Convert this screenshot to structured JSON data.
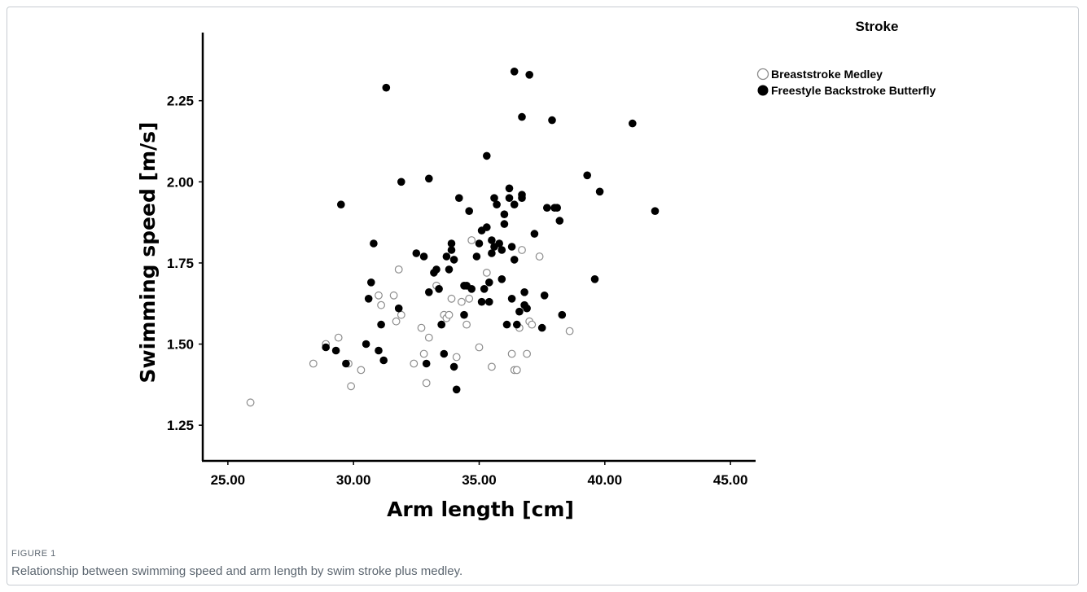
{
  "figure": {
    "label": "FIGURE 1",
    "caption": "Relationship between swimming speed and arm length by swim stroke plus medley."
  },
  "colors": {
    "open_marker_stroke": "#8c8c8c",
    "filled_marker": "#000000",
    "axis": "#000000",
    "caption_text": "#5c6670"
  },
  "chart_data": {
    "type": "scatter",
    "xlabel": "Arm length [cm]",
    "ylabel": "Swimming speed [m/s]",
    "xlim": [
      24,
      46
    ],
    "ylim": [
      1.14,
      2.46
    ],
    "xticks": [
      25,
      30,
      35,
      40,
      45
    ],
    "xtick_labels": [
      "25.00",
      "30.00",
      "35.00",
      "40.00",
      "45.00"
    ],
    "yticks": [
      1.25,
      1.5,
      1.75,
      2.0,
      2.25
    ],
    "ytick_labels": [
      "1.25",
      "1.50",
      "1.75",
      "2.00",
      "2.25"
    ],
    "grid": false,
    "legend": {
      "title": "Stroke",
      "placement": "top-right"
    },
    "series": [
      {
        "name": "Breaststroke Medley",
        "marker": "open-circle",
        "points": [
          [
            25.9,
            1.32
          ],
          [
            28.4,
            1.44
          ],
          [
            28.9,
            1.5
          ],
          [
            29.4,
            1.52
          ],
          [
            29.8,
            1.44
          ],
          [
            29.9,
            1.37
          ],
          [
            30.3,
            1.42
          ],
          [
            31.0,
            1.65
          ],
          [
            31.1,
            1.62
          ],
          [
            31.6,
            1.65
          ],
          [
            31.7,
            1.57
          ],
          [
            31.8,
            1.73
          ],
          [
            31.9,
            1.59
          ],
          [
            32.4,
            1.44
          ],
          [
            32.7,
            1.55
          ],
          [
            32.8,
            1.47
          ],
          [
            32.9,
            1.38
          ],
          [
            33.0,
            1.52
          ],
          [
            33.3,
            1.68
          ],
          [
            33.5,
            1.56
          ],
          [
            33.6,
            1.59
          ],
          [
            33.7,
            1.58
          ],
          [
            33.8,
            1.59
          ],
          [
            33.9,
            1.64
          ],
          [
            34.1,
            1.46
          ],
          [
            34.3,
            1.63
          ],
          [
            34.5,
            1.56
          ],
          [
            34.6,
            1.64
          ],
          [
            34.7,
            1.82
          ],
          [
            35.0,
            1.49
          ],
          [
            35.3,
            1.72
          ],
          [
            35.5,
            1.43
          ],
          [
            36.3,
            1.47
          ],
          [
            36.4,
            1.42
          ],
          [
            36.5,
            1.42
          ],
          [
            36.7,
            1.79
          ],
          [
            36.9,
            1.47
          ],
          [
            37.0,
            1.57
          ],
          [
            37.1,
            1.56
          ],
          [
            37.4,
            1.77
          ],
          [
            38.6,
            1.54
          ],
          [
            36.6,
            1.55
          ]
        ]
      },
      {
        "name": "Freestyle Backstroke Butterfly",
        "marker": "filled-circle",
        "points": [
          [
            28.9,
            1.49
          ],
          [
            29.3,
            1.48
          ],
          [
            29.5,
            1.93
          ],
          [
            29.7,
            1.44
          ],
          [
            30.5,
            1.5
          ],
          [
            30.6,
            1.64
          ],
          [
            30.7,
            1.69
          ],
          [
            30.8,
            1.81
          ],
          [
            31.0,
            1.48
          ],
          [
            31.1,
            1.56
          ],
          [
            31.2,
            1.45
          ],
          [
            31.3,
            2.29
          ],
          [
            31.8,
            1.61
          ],
          [
            31.9,
            2.0
          ],
          [
            32.5,
            1.78
          ],
          [
            32.8,
            1.77
          ],
          [
            32.9,
            1.44
          ],
          [
            33.0,
            1.66
          ],
          [
            33.0,
            2.01
          ],
          [
            33.2,
            1.72
          ],
          [
            33.3,
            1.73
          ],
          [
            33.4,
            1.67
          ],
          [
            33.5,
            1.56
          ],
          [
            33.6,
            1.47
          ],
          [
            33.7,
            1.77
          ],
          [
            33.8,
            1.73
          ],
          [
            33.9,
            1.79
          ],
          [
            33.9,
            1.81
          ],
          [
            34.0,
            1.76
          ],
          [
            34.0,
            1.43
          ],
          [
            34.1,
            1.36
          ],
          [
            34.2,
            1.95
          ],
          [
            34.4,
            1.68
          ],
          [
            34.4,
            1.59
          ],
          [
            34.5,
            1.68
          ],
          [
            34.6,
            1.91
          ],
          [
            34.7,
            1.67
          ],
          [
            34.9,
            1.77
          ],
          [
            35.0,
            1.81
          ],
          [
            35.1,
            1.85
          ],
          [
            35.1,
            1.63
          ],
          [
            35.2,
            1.67
          ],
          [
            35.3,
            2.08
          ],
          [
            35.3,
            1.86
          ],
          [
            35.4,
            1.63
          ],
          [
            35.4,
            1.69
          ],
          [
            35.5,
            1.78
          ],
          [
            35.5,
            1.82
          ],
          [
            35.6,
            1.8
          ],
          [
            35.6,
            1.95
          ],
          [
            35.7,
            1.93
          ],
          [
            35.8,
            1.81
          ],
          [
            35.9,
            1.79
          ],
          [
            35.9,
            1.7
          ],
          [
            36.0,
            1.87
          ],
          [
            36.0,
            1.9
          ],
          [
            36.1,
            1.56
          ],
          [
            36.2,
            1.95
          ],
          [
            36.2,
            1.98
          ],
          [
            36.3,
            1.64
          ],
          [
            36.3,
            1.8
          ],
          [
            36.4,
            1.76
          ],
          [
            36.4,
            1.93
          ],
          [
            36.4,
            2.34
          ],
          [
            36.5,
            1.56
          ],
          [
            36.6,
            1.6
          ],
          [
            36.7,
            1.95
          ],
          [
            36.7,
            1.96
          ],
          [
            36.7,
            2.2
          ],
          [
            36.8,
            1.62
          ],
          [
            36.8,
            1.66
          ],
          [
            36.9,
            1.61
          ],
          [
            37.0,
            2.33
          ],
          [
            37.2,
            1.84
          ],
          [
            37.5,
            1.55
          ],
          [
            37.6,
            1.65
          ],
          [
            37.7,
            1.92
          ],
          [
            37.9,
            2.19
          ],
          [
            38.0,
            1.92
          ],
          [
            38.1,
            1.92
          ],
          [
            38.2,
            1.88
          ],
          [
            38.3,
            1.59
          ],
          [
            39.3,
            2.02
          ],
          [
            39.6,
            1.7
          ],
          [
            39.8,
            1.97
          ],
          [
            41.1,
            2.18
          ],
          [
            42.0,
            1.91
          ]
        ]
      }
    ]
  }
}
